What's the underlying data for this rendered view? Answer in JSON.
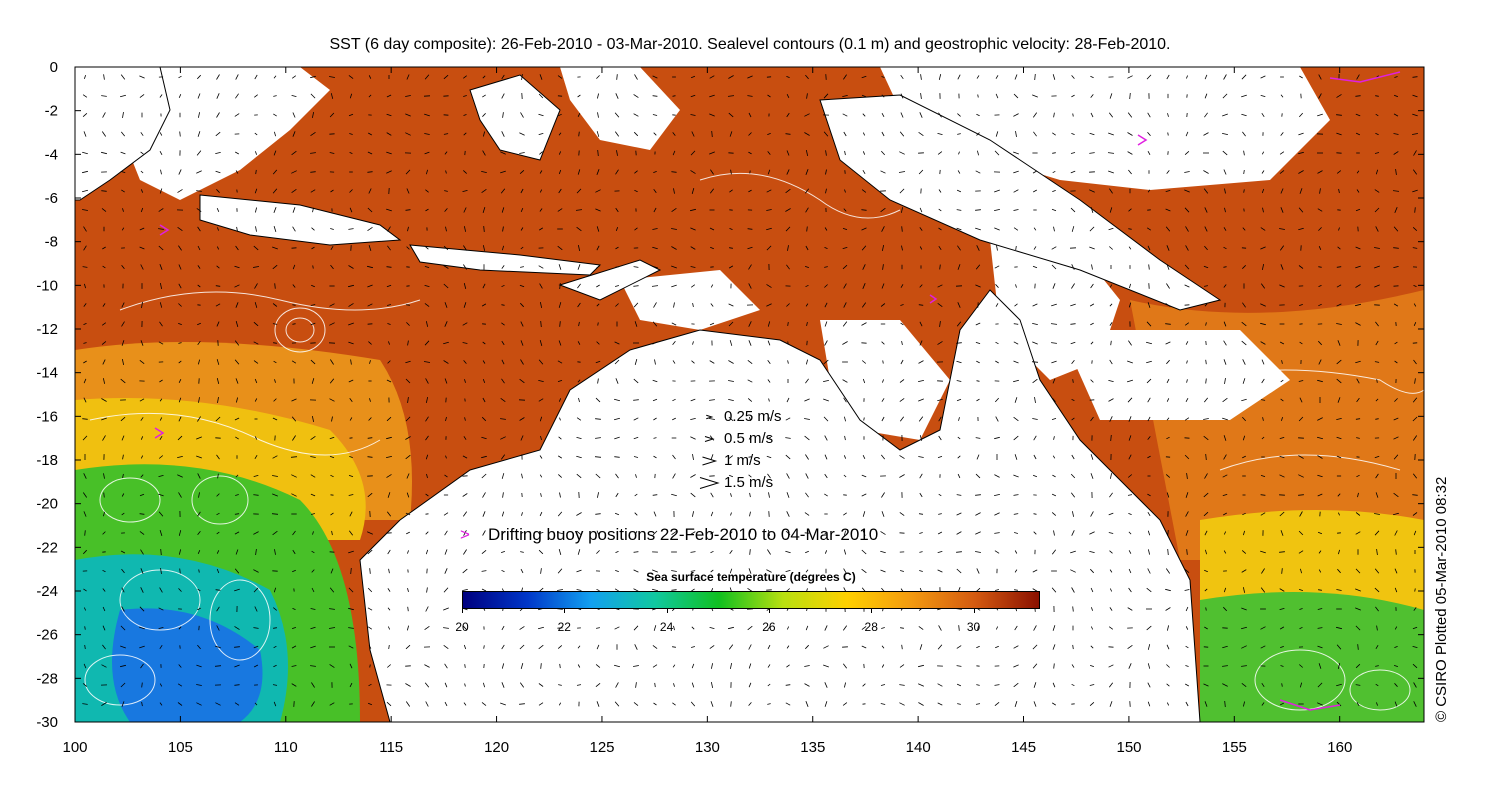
{
  "title": "SST (6 day composite): 26-Feb-2010 - 03-Mar-2010. Sealevel contours (0.1 m) and geostrophic velocity: 28-Feb-2010.",
  "x_ticks": [
    "100",
    "105",
    "110",
    "115",
    "120",
    "125",
    "130",
    "135",
    "140",
    "145",
    "150",
    "155",
    "160"
  ],
  "y_ticks": [
    "0",
    "-2",
    "-4",
    "-6",
    "-8",
    "-10",
    "-12",
    "-14",
    "-16",
    "-18",
    "-20",
    "-22",
    "-24",
    "-26",
    "-28",
    "-30"
  ],
  "velocity_legend": [
    {
      "label": "0.25 m/s",
      "speed": 0.25
    },
    {
      "label": "0.5 m/s",
      "speed": 0.5
    },
    {
      "label": "1 m/s",
      "speed": 1
    },
    {
      "label": "1.5 m/s",
      "speed": 1.5
    }
  ],
  "buoy_legend": {
    "marker": ">",
    "label": "Drifting buoy positions 22-Feb-2010 to 04-Mar-2010",
    "color": "#e020e0"
  },
  "colorbar": {
    "title": "Sea surface temperature (degrees C)",
    "ticks": [
      "20",
      "22",
      "24",
      "26",
      "28",
      "30"
    ],
    "range": [
      20,
      31.3
    ],
    "colors": [
      "#00007f",
      "#0036c8",
      "#12a0f0",
      "#10c8a0",
      "#10c020",
      "#b8e010",
      "#ffd000",
      "#f39a10",
      "#d45a10",
      "#8a1000"
    ]
  },
  "credit": "© CSIRO Plotted 05-Mar-2010 08:32",
  "map": {
    "lon_range": [
      100,
      164
    ],
    "lat_range": [
      -30,
      0
    ],
    "land_color": "#ffffff",
    "coast_color": "#000000",
    "contour_color": "#ffffff",
    "vector_color": "#000000",
    "buoy_color": "#e020e0"
  }
}
